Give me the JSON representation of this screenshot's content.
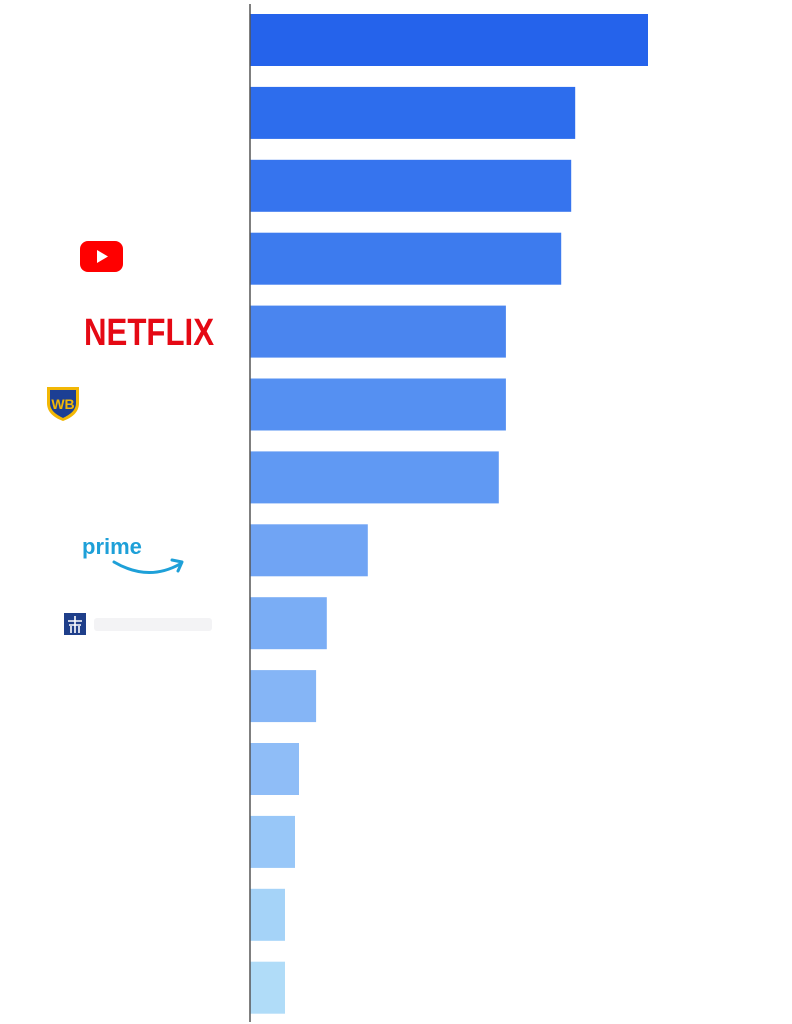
{
  "chart_data": {
    "type": "bar",
    "orientation": "horizontal",
    "title": "",
    "xlabel": "",
    "ylabel": "",
    "xlim": [
      0,
      100
    ],
    "grid": false,
    "legend": "none",
    "values": [
      100,
      81.7,
      80.7,
      78.2,
      64.3,
      64.3,
      62.5,
      29.6,
      19.3,
      16.6,
      12.3,
      11.3,
      8.8,
      8.8
    ],
    "colors": [
      "#2563eb",
      "#2d6ded",
      "#3674ee",
      "#3d7bee",
      "#4a85ef",
      "#5590f2",
      "#6099f3",
      "#70a4f4",
      "#7aadf5",
      "#85b5f6",
      "#8fbdf7",
      "#98c7f8",
      "#a5d3f8",
      "#b0dcf8"
    ],
    "logos": [
      {
        "row": 3,
        "name": "youtube-logo"
      },
      {
        "row": 4,
        "name": "netflix-logo",
        "text": "NETFLIX",
        "color": "#e50914"
      },
      {
        "row": 5,
        "name": "warner-bros-logo",
        "text": "WB",
        "color": "#1c3f94",
        "accent": "#f2b705"
      },
      {
        "row": 7,
        "name": "prime-video-logo",
        "text": "prime",
        "color": "#1ea0d8"
      },
      {
        "row": 8,
        "name": "comcast-logo",
        "color": "#1f3f8a"
      }
    ]
  }
}
